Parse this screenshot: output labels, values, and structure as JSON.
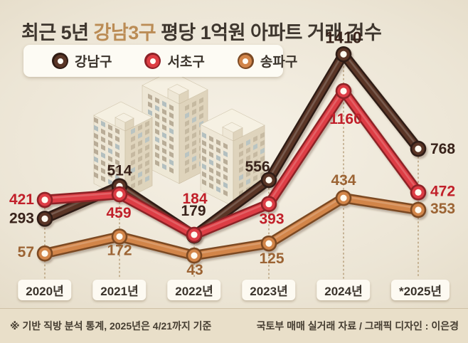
{
  "title": {
    "text_before": "최근 5년 ",
    "highlight": "강남3구",
    "text_after": " 평당 1억원 아파트 거래 건수"
  },
  "chart_data": {
    "type": "line",
    "title": "최근 5년 강남3구 평당 1억원 아파트 거래 건수",
    "categories": [
      "2020년",
      "2021년",
      "2022년",
      "2023년",
      "2024년",
      "*2025년"
    ],
    "series": [
      {
        "name": "강남구",
        "color": "#5a3627",
        "outline": "#2f1b13",
        "label_color": "#38221a",
        "values": [
          293,
          514,
          179,
          556,
          1410,
          768
        ]
      },
      {
        "name": "서초구",
        "color": "#dd3e44",
        "outline": "#8e2127",
        "label_color": "#c1202a",
        "values": [
          421,
          459,
          184,
          393,
          1160,
          472
        ]
      },
      {
        "name": "송파구",
        "color": "#d2854a",
        "outline": "#7c4a24",
        "label_color": "#9c6434",
        "values": [
          57,
          172,
          43,
          125,
          434,
          353
        ]
      }
    ],
    "ylim": [
      0,
      1450
    ],
    "legend_position": "top-left",
    "grid": "dotted vertical guide per year",
    "point_style": "ring marker with white center",
    "value_labels": "shown at every point, colored per series"
  },
  "decor": {
    "illustration": "apartment-buildings"
  },
  "footer": {
    "left": "※ 기반 직방 분석 통계, 2025년은 4/21까지 기준",
    "right": "국토부 매매 실거래 자료 / 그래픽 디자인 : 이은경"
  }
}
